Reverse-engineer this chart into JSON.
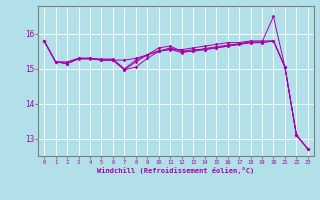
{
  "xlabel": "Windchill (Refroidissement éolien,°C)",
  "background_color": "#b2e0e8",
  "line_color": "#aa00aa",
  "grid_color": "#ffffff",
  "xlim": [
    -0.5,
    23.5
  ],
  "ylim": [
    12.5,
    16.8
  ],
  "yticks": [
    13,
    14,
    15,
    16
  ],
  "xticks": [
    0,
    1,
    2,
    3,
    4,
    5,
    6,
    7,
    8,
    9,
    10,
    11,
    12,
    13,
    14,
    15,
    16,
    17,
    18,
    19,
    20,
    21,
    22,
    23
  ],
  "series": [
    [
      15.8,
      15.2,
      15.2,
      15.3,
      15.3,
      15.25,
      15.25,
      15.25,
      15.3,
      15.4,
      15.5,
      15.55,
      15.55,
      15.6,
      15.65,
      15.7,
      15.75,
      15.75,
      15.8,
      15.8,
      15.8,
      15.05,
      13.1,
      12.7
    ],
    [
      15.8,
      15.2,
      15.15,
      15.3,
      15.3,
      15.28,
      15.28,
      15.0,
      15.25,
      15.4,
      15.6,
      15.65,
      15.5,
      15.55,
      15.55,
      15.6,
      15.65,
      15.7,
      15.75,
      15.75,
      15.8,
      15.05,
      13.1,
      12.7
    ],
    [
      15.8,
      15.2,
      15.15,
      15.3,
      15.3,
      15.25,
      15.25,
      14.97,
      15.05,
      15.3,
      15.5,
      15.6,
      15.5,
      15.5,
      15.55,
      15.6,
      15.65,
      15.7,
      15.75,
      15.75,
      15.8,
      15.05,
      13.1,
      12.7
    ],
    [
      15.8,
      15.2,
      15.15,
      15.28,
      15.28,
      15.25,
      15.25,
      14.97,
      15.2,
      15.4,
      15.52,
      15.56,
      15.46,
      15.52,
      15.58,
      15.63,
      15.68,
      15.72,
      15.77,
      15.77,
      16.5,
      15.05,
      13.1,
      12.7
    ]
  ],
  "spine_color": "#808080",
  "tick_fontsize": 4.0,
  "xlabel_fontsize": 5.0,
  "linewidth": 0.7,
  "markersize": 1.8
}
